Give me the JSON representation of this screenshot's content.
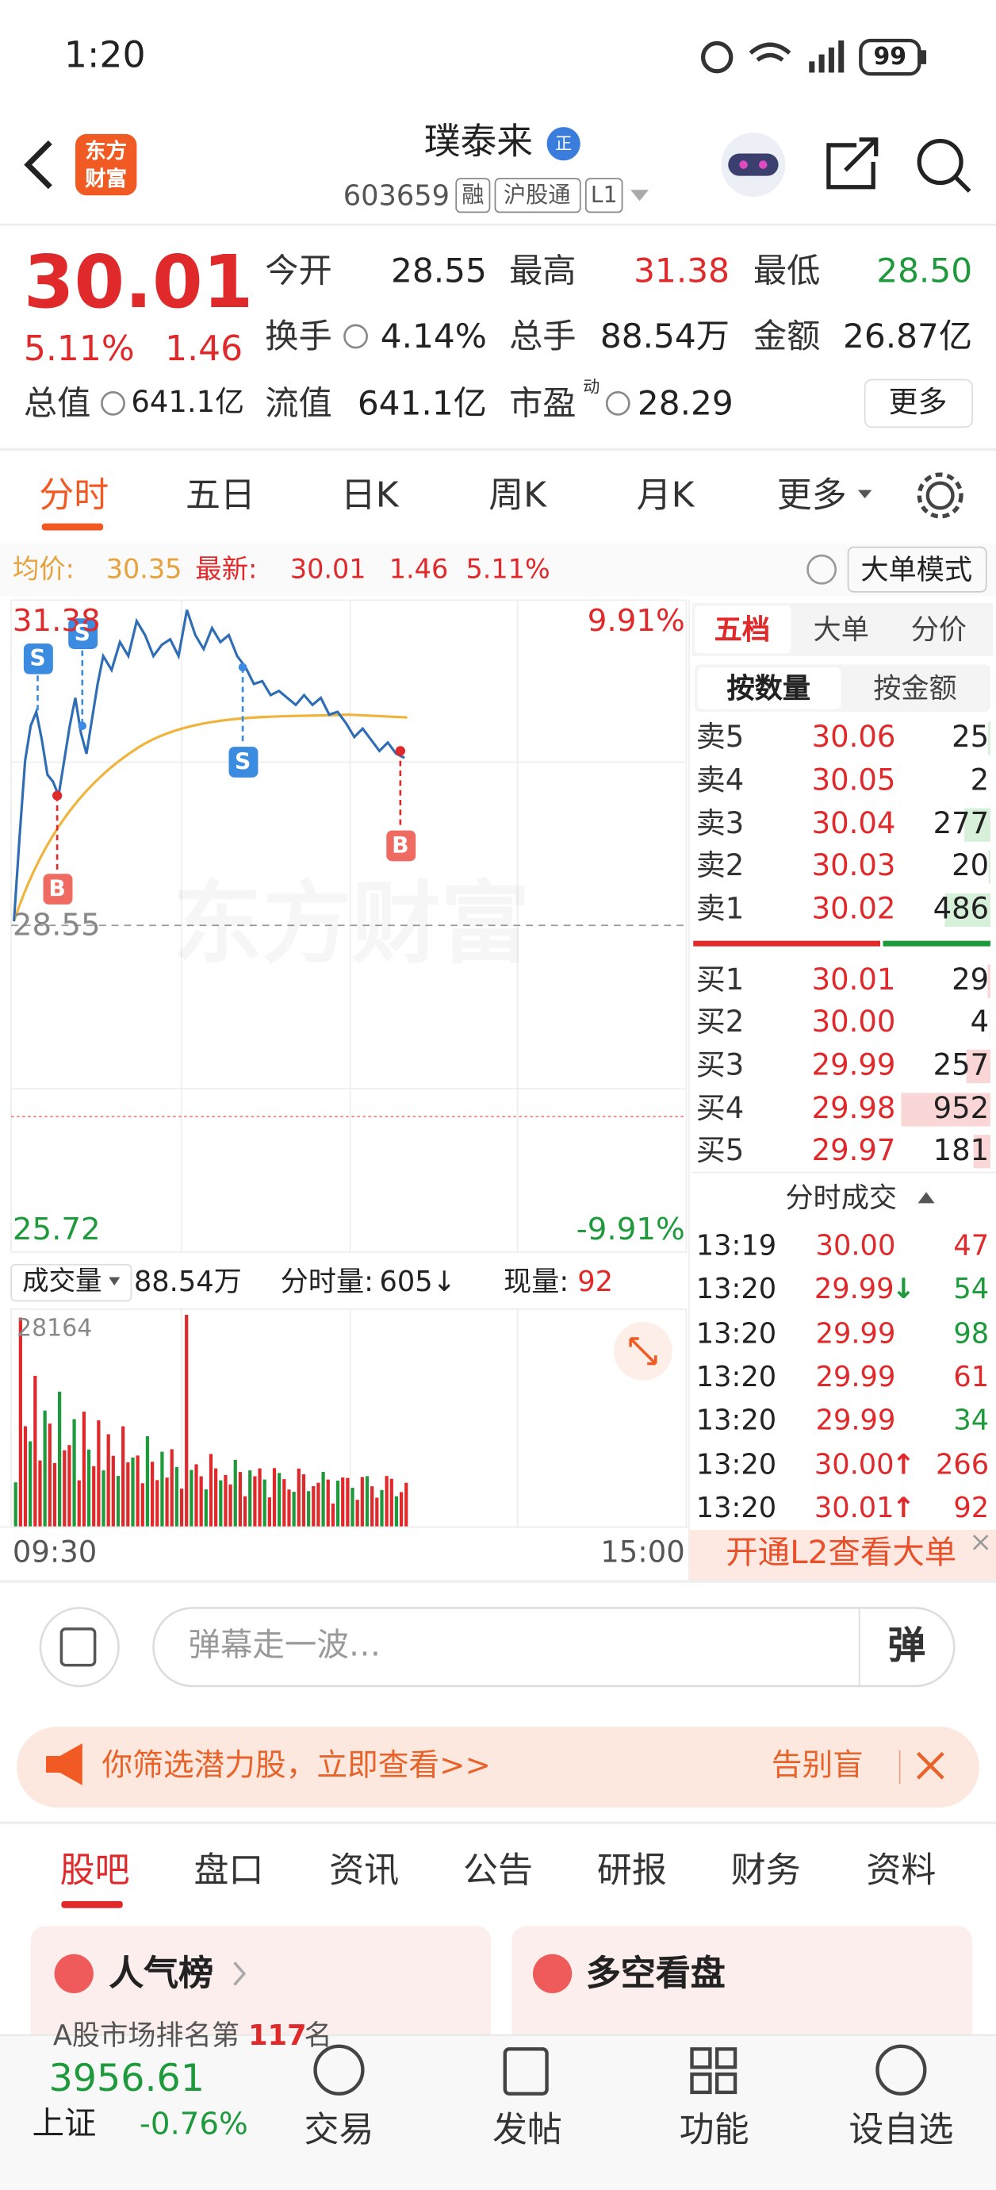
{
  "status": {
    "time": "1:20",
    "battery": "99"
  },
  "header": {
    "logo": [
      "东方",
      "财富"
    ],
    "title": "璞泰来",
    "badge": "正",
    "code": "603659",
    "tags": [
      "融",
      "沪股通",
      "L1"
    ]
  },
  "quote": {
    "price": "30.01",
    "change_pct": "5.11%",
    "change": "1.46",
    "fields": [
      [
        {
          "label": "今开",
          "value": "28.55",
          "color": "#222"
        },
        {
          "label": "最高",
          "value": "31.38",
          "color": "#e0292b"
        },
        {
          "label": "最低",
          "value": "28.50",
          "color": "#1e9a3c"
        }
      ],
      [
        {
          "label": "换手",
          "value": "4.14%",
          "color": "#222"
        },
        {
          "label": "总手",
          "value": "88.54万",
          "color": "#222"
        },
        {
          "label": "金额",
          "value": "26.87亿",
          "color": "#222"
        }
      ]
    ],
    "market_cap": {
      "label": "总值",
      "value": "641.1亿"
    },
    "float_cap": {
      "label": "流值",
      "value": "641.1亿"
    },
    "pe": {
      "label": "市盈",
      "sup": "动",
      "value": "28.29"
    },
    "more": "更多"
  },
  "tabs": [
    "分时",
    "五日",
    "日K",
    "周K",
    "月K",
    "更多"
  ],
  "info_bar": {
    "avg_label": "均价:",
    "avg": "30.35",
    "last_label": "最新:",
    "last": "30.01",
    "change": "1.46",
    "change_pct": "5.11%",
    "mode": "大单模式"
  },
  "chart": {
    "high": "31.38",
    "high_pct": "9.91%",
    "base": "28.55",
    "low": "25.72",
    "low_pct": "-9.91%",
    "watermark": "东方财富",
    "markers": [
      "S",
      "S",
      "S",
      "B",
      "B"
    ],
    "volume_label": "成交量",
    "volume_total": "88.54万",
    "minute_vol_label": "分时量:",
    "minute_vol": "605↓",
    "now_vol_label": "现量:",
    "now_vol": "92",
    "vol_max": "28164",
    "start_time": "09:30",
    "end_time": "15:00"
  },
  "order_book": {
    "tabs": [
      "五档",
      "大单",
      "分价"
    ],
    "modes": [
      "按数量",
      "按金额"
    ],
    "asks": [
      {
        "label": "卖5",
        "price": "30.06",
        "volume": 25
      },
      {
        "label": "卖4",
        "price": "30.05",
        "volume": 2
      },
      {
        "label": "卖3",
        "price": "30.04",
        "volume": 277
      },
      {
        "label": "卖2",
        "price": "30.03",
        "volume": 20
      },
      {
        "label": "卖1",
        "price": "30.02",
        "volume": 486
      }
    ],
    "bids": [
      {
        "label": "买1",
        "price": "30.01",
        "volume": 29
      },
      {
        "label": "买2",
        "price": "30.00",
        "volume": 4
      },
      {
        "label": "买3",
        "price": "29.99",
        "volume": 257
      },
      {
        "label": "买4",
        "price": "29.98",
        "volume": 952
      },
      {
        "label": "买5",
        "price": "29.97",
        "volume": 181
      }
    ],
    "trades_title": "分时成交",
    "trades": [
      {
        "time": "13:19",
        "price": "30.00",
        "arrow": "",
        "volume": 47,
        "color": "#e0292b"
      },
      {
        "time": "13:20",
        "price": "29.99",
        "arrow": "↓",
        "volume": 54,
        "color": "#1e9a3c"
      },
      {
        "time": "13:20",
        "price": "29.99",
        "arrow": "",
        "volume": 98,
        "color": "#1e9a3c"
      },
      {
        "time": "13:20",
        "price": "29.99",
        "arrow": "",
        "volume": 61,
        "color": "#e0292b"
      },
      {
        "time": "13:20",
        "price": "29.99",
        "arrow": "",
        "volume": 34,
        "color": "#1e9a3c"
      },
      {
        "time": "13:20",
        "price": "30.00",
        "arrow": "↑",
        "volume": 266,
        "color": "#e0292b"
      },
      {
        "time": "13:20",
        "price": "30.01",
        "arrow": "↑",
        "volume": 92,
        "color": "#e0292b"
      }
    ],
    "l2": "开通L2查看大单"
  },
  "comment": {
    "placeholder": "弹幕走一波…",
    "button": "弹"
  },
  "banner": {
    "text": "你筛选潜力股，立即查看>>",
    "right": "告别盲"
  },
  "section_tabs": [
    "股吧",
    "盘口",
    "资讯",
    "公告",
    "研报",
    "财务",
    "资料"
  ],
  "cards": [
    {
      "title": "人气榜",
      "line_a": "A股市场排名第",
      "rank": "117",
      "line_b": "名"
    },
    {
      "title": "多空看盘"
    }
  ],
  "nav": {
    "index_value": "3956.61",
    "index_name": "上证",
    "index_change": "-0.76%",
    "items": [
      "交易",
      "发帖",
      "功能",
      "设自选"
    ]
  }
}
